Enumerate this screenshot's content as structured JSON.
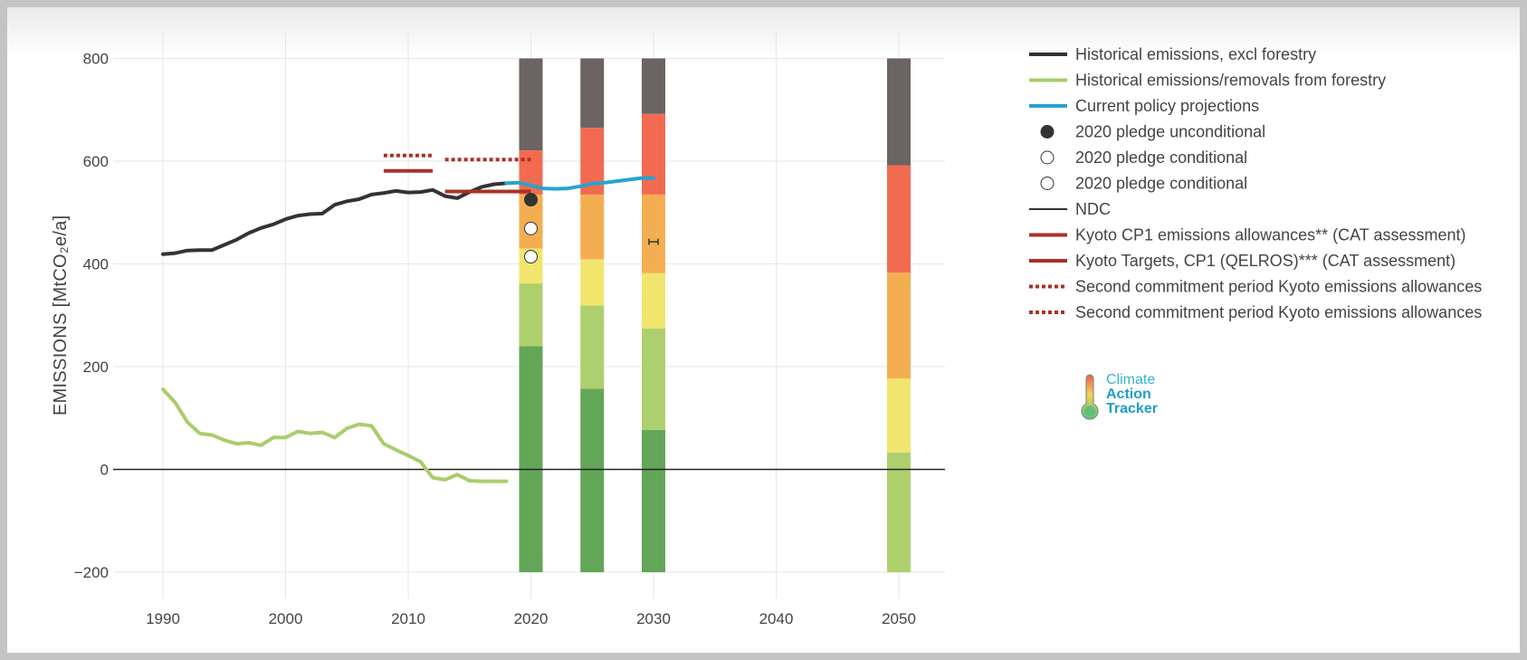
{
  "chart_data": {
    "type": "mixed",
    "ylabel": "EMISSIONS [MtCO₂e/a]",
    "xlim": [
      1986,
      2054
    ],
    "ylim": [
      -200,
      800
    ],
    "x_ticks": [
      1990,
      2000,
      2010,
      2020,
      2030,
      2040,
      2050
    ],
    "y_ticks": [
      -200,
      0,
      200,
      400,
      600,
      800
    ],
    "grid": true,
    "legend_position": "right",
    "series": [
      {
        "name": "Historical emissions, excl forestry",
        "kind": "line",
        "color": "#333333",
        "style": "solid",
        "x": [
          1990,
          1991,
          1992,
          1993,
          1994,
          1995,
          1996,
          1997,
          1998,
          1999,
          2000,
          2001,
          2002,
          2003,
          2004,
          2005,
          2006,
          2007,
          2008,
          2009,
          2010,
          2011,
          2012,
          2013,
          2014,
          2015,
          2016,
          2017,
          2018
        ],
        "y": [
          419,
          421,
          426,
          427,
          427,
          437,
          447,
          460,
          470,
          477,
          487,
          494,
          497,
          498,
          515,
          522,
          526,
          535,
          538,
          542,
          539,
          540,
          544,
          532,
          528,
          540,
          550,
          555,
          557
        ]
      },
      {
        "name": "Historical emissions/removals from forestry",
        "kind": "line",
        "color": "#a9cd6c",
        "style": "solid",
        "x": [
          1990,
          1991,
          1992,
          1993,
          1994,
          1995,
          1996,
          1997,
          1998,
          1999,
          2000,
          2001,
          2002,
          2003,
          2004,
          2005,
          2006,
          2007,
          2008,
          2009,
          2010,
          2011,
          2012,
          2013,
          2014,
          2015,
          2016,
          2017,
          2018
        ],
        "y": [
          156,
          130,
          92,
          70,
          67,
          57,
          50,
          52,
          47,
          62,
          62,
          74,
          70,
          72,
          62,
          80,
          88,
          85,
          50,
          38,
          27,
          15,
          -16,
          -20,
          -10,
          -22,
          -23,
          -23,
          -23
        ]
      },
      {
        "name": "Current policy projections",
        "kind": "line",
        "color": "#28a3cf",
        "style": "solid",
        "x": [
          2018,
          2019,
          2020,
          2021,
          2022,
          2023,
          2024,
          2025,
          2026,
          2027,
          2028,
          2029,
          2030
        ],
        "y": [
          557,
          558,
          553,
          547,
          546,
          547,
          551,
          556,
          558,
          561,
          564,
          567,
          567
        ]
      },
      {
        "name": "2020 pledge unconditional",
        "kind": "point",
        "color": "#333333",
        "fill": "#333333",
        "x": [
          2020
        ],
        "y": [
          525
        ]
      },
      {
        "name": "2020 pledge conditional",
        "kind": "point",
        "color": "#333333",
        "fill": "#ffffff",
        "x": [
          2020
        ],
        "y": [
          469
        ]
      },
      {
        "name": "2020 pledge conditional",
        "kind": "point",
        "color": "#333333",
        "fill": "#ffffff",
        "x": [
          2020
        ],
        "y": [
          414
        ]
      },
      {
        "name": "NDC",
        "kind": "range",
        "color": "#333333",
        "x": [
          2030
        ],
        "y_low": [
          437
        ],
        "y_high": [
          449
        ]
      },
      {
        "name": "Kyoto CP1 emissions allowances** (CAT assessment)",
        "kind": "segment",
        "color": "#a93226",
        "style": "solid",
        "x": [
          2008,
          2012
        ],
        "y": [
          581,
          581
        ]
      },
      {
        "name": "Kyoto Targets, CP1 (QELROS)*** (CAT assessment)",
        "kind": "segment",
        "color": "#a93226",
        "style": "solid",
        "x": [
          2013,
          2020
        ],
        "y": [
          541,
          541
        ]
      },
      {
        "name": "Second commitment period Kyoto emissions allowances",
        "kind": "segment",
        "color": "#a93226",
        "style": "dotted",
        "x": [
          2008,
          2012
        ],
        "y": [
          611,
          611
        ]
      },
      {
        "name": "Second commitment period Kyoto emissions allowances",
        "kind": "segment",
        "color": "#a93226",
        "style": "dotted",
        "x": [
          2013,
          2020
        ],
        "y": [
          603,
          603
        ]
      }
    ],
    "bars": [
      {
        "x": 2020,
        "segments": [
          {
            "from": -200,
            "to": 240,
            "color": "#63a657"
          },
          {
            "from": 240,
            "to": 362,
            "color": "#aecf6e"
          },
          {
            "from": 362,
            "to": 430,
            "color": "#f2e56e"
          },
          {
            "from": 430,
            "to": 535,
            "color": "#f4ae52"
          },
          {
            "from": 535,
            "to": 621,
            "color": "#f26b50"
          },
          {
            "from": 621,
            "to": 800,
            "color": "#6b6463"
          }
        ]
      },
      {
        "x": 2025,
        "segments": [
          {
            "from": -200,
            "to": 157,
            "color": "#63a657"
          },
          {
            "from": 157,
            "to": 319,
            "color": "#aecf6e"
          },
          {
            "from": 319,
            "to": 409,
            "color": "#f2e56e"
          },
          {
            "from": 409,
            "to": 535,
            "color": "#f4ae52"
          },
          {
            "from": 535,
            "to": 665,
            "color": "#f26b50"
          },
          {
            "from": 665,
            "to": 800,
            "color": "#6b6463"
          }
        ]
      },
      {
        "x": 2030,
        "segments": [
          {
            "from": -200,
            "to": 77,
            "color": "#63a657"
          },
          {
            "from": 77,
            "to": 274,
            "color": "#aecf6e"
          },
          {
            "from": 274,
            "to": 382,
            "color": "#f2e56e"
          },
          {
            "from": 382,
            "to": 535,
            "color": "#f4ae52"
          },
          {
            "from": 535,
            "to": 692,
            "color": "#f26b50"
          },
          {
            "from": 692,
            "to": 800,
            "color": "#6b6463"
          }
        ]
      },
      {
        "x": 2050,
        "segments": [
          {
            "from": -200,
            "to": 33,
            "color": "#aecf6e"
          },
          {
            "from": 33,
            "to": 177,
            "color": "#f2e56e"
          },
          {
            "from": 177,
            "to": 383,
            "color": "#f4ae52"
          },
          {
            "from": 383,
            "to": 592,
            "color": "#f26b50"
          },
          {
            "from": 592,
            "to": 800,
            "color": "#6b6463"
          }
        ]
      }
    ]
  },
  "logo": {
    "line1": "Climate",
    "line2": "Action",
    "line3": "Tracker",
    "color_light": "#35b1d6",
    "color_dark": "#1f9ec6"
  }
}
